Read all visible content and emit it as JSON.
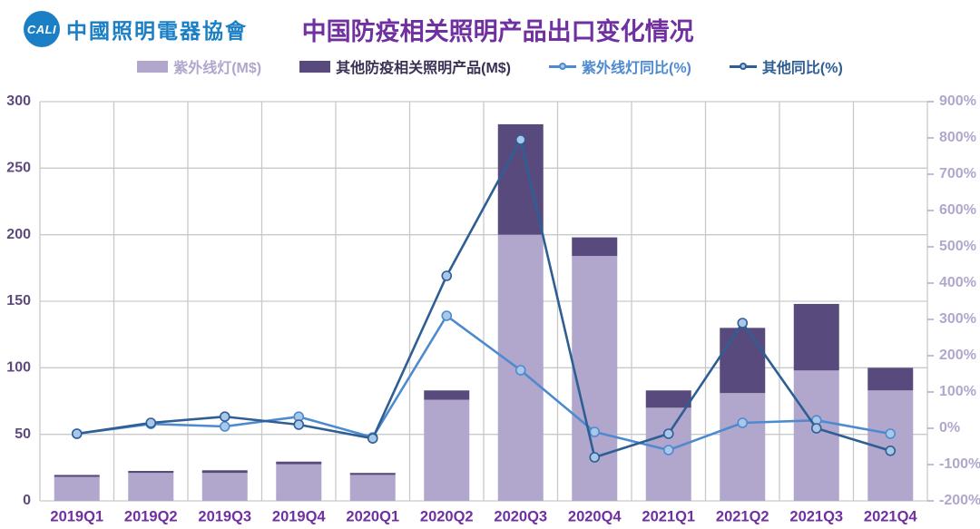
{
  "title": "中国防疫相关照明产品出口变化情况",
  "logo": {
    "mark": "CALI",
    "org_name": "中國照明電器協會"
  },
  "legend": {
    "items": [
      {
        "label": "紫外线灯(M$)",
        "type": "bar",
        "color": "#b1a6cc",
        "text_color": "#b1a6cc"
      },
      {
        "label": "其他防疫相关照明产品(M$)",
        "type": "bar",
        "color": "#594a7d",
        "text_color": "#3a3054"
      },
      {
        "label": "紫外线灯同比(%)",
        "type": "line",
        "color": "#4e8ad0",
        "text_color": "#4e8ad0"
      },
      {
        "label": "其他同比(%)",
        "type": "line",
        "color": "#2f5e94",
        "text_color": "#2f5e94"
      }
    ]
  },
  "colors": {
    "title": "#7030a0",
    "x_labels": "#7030a0",
    "left_axis_labels": "#5f4a7e",
    "right_axis_labels": "#b1a6cc",
    "gridline": "#c9c9c9",
    "right_tick": "#b1a6cc",
    "marker_fill": "#a9c7e8",
    "logo_blue": "#1b7fc5",
    "background": "#ffffff"
  },
  "chart_data": {
    "type": "combo: stacked bar (left axis, M$) + line (right axis, %)",
    "title": "中国防疫相关照明产品出口变化情况",
    "categories": [
      "2019Q1",
      "2019Q2",
      "2019Q3",
      "2019Q4",
      "2020Q1",
      "2020Q2",
      "2020Q3",
      "2020Q4",
      "2021Q1",
      "2021Q2",
      "2021Q3",
      "2021Q4"
    ],
    "bar_series": [
      {
        "name": "紫外线灯(M$)",
        "axis": "left",
        "color": "#b1a6cc",
        "values": [
          18,
          21,
          21,
          27.5,
          19.5,
          76,
          200,
          184,
          70,
          81,
          98,
          83
        ]
      },
      {
        "name": "其他防疫相关照明产品(M$)",
        "axis": "left",
        "color": "#594a7d",
        "values": [
          1.5,
          1.5,
          2,
          2,
          1.5,
          7,
          83,
          14,
          13,
          49,
          50,
          17
        ]
      }
    ],
    "line_series": [
      {
        "name": "紫外线灯同比(%)",
        "axis": "right",
        "color": "#4e8ad0",
        "values": [
          -15,
          12,
          5,
          32,
          -25,
          310,
          160,
          -10,
          -60,
          15,
          22,
          -15
        ]
      },
      {
        "name": "其他同比(%)",
        "axis": "right",
        "color": "#2f5e94",
        "values": [
          -15,
          15,
          32,
          10,
          -28,
          420,
          795,
          -80,
          -15,
          290,
          0,
          -62
        ]
      }
    ],
    "left_axis": {
      "min": 0,
      "max": 300,
      "step": 50,
      "tick_labels": [
        "0",
        "50",
        "100",
        "150",
        "200",
        "250",
        "300"
      ]
    },
    "right_axis": {
      "min": -200,
      "max": 900,
      "step": 100,
      "tick_labels": [
        "-200%",
        "-100%",
        "0%",
        "100%",
        "200%",
        "300%",
        "400%",
        "500%",
        "600%",
        "700%",
        "800%",
        "900%"
      ]
    },
    "grid": true,
    "legend_position": "top",
    "stacked_bars": true
  }
}
